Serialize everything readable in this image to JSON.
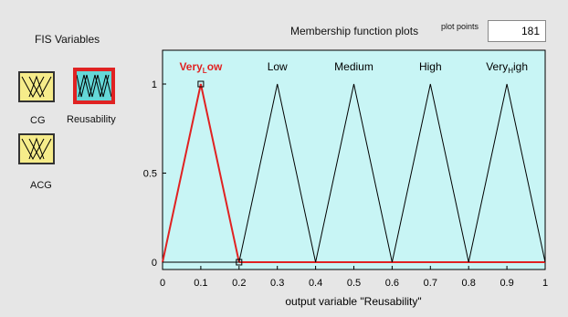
{
  "fis_variables": {
    "title": "FIS Variables",
    "items": [
      {
        "label": "CG",
        "selected": false,
        "color": "#f6ec8a"
      },
      {
        "label": "Reusability",
        "selected": true,
        "color": "#64d8d8"
      },
      {
        "label": "ACG",
        "selected": false,
        "color": "#f6ec8a"
      }
    ]
  },
  "plot": {
    "title": "Membership function plots",
    "plot_points_label": "plot points",
    "plot_points_value": "181",
    "xlabel": "output variable \"Reusability\"",
    "background": "#c8f5f5",
    "active_color": "#e02222"
  },
  "chart_data": {
    "type": "line",
    "title": "Membership function plots",
    "xlabel": "output variable \"Reusability\"",
    "ylabel": "",
    "xlim": [
      0,
      1
    ],
    "ylim": [
      0,
      1
    ],
    "x_ticks": [
      "0",
      "0.1",
      "0.2",
      "0.3",
      "0.4",
      "0.5",
      "0.6",
      "0.7",
      "0.8",
      "0.9",
      "1"
    ],
    "y_ticks": [
      "0",
      "0.5",
      "1"
    ],
    "series": [
      {
        "name": "Very_Low",
        "label_main": "Very",
        "label_sub": "L",
        "label_rest": "ow",
        "x": [
          0,
          0.1,
          0.2
        ],
        "y": [
          0,
          1,
          0
        ],
        "selected": true
      },
      {
        "name": "Low",
        "label_main": "Low",
        "label_sub": "",
        "label_rest": "",
        "x": [
          0.2,
          0.3,
          0.4
        ],
        "y": [
          0,
          1,
          0
        ],
        "selected": false
      },
      {
        "name": "Medium",
        "label_main": "Medium",
        "label_sub": "",
        "label_rest": "",
        "x": [
          0.4,
          0.5,
          0.6
        ],
        "y": [
          0,
          1,
          0
        ],
        "selected": false
      },
      {
        "name": "High",
        "label_main": "High",
        "label_sub": "",
        "label_rest": "",
        "x": [
          0.6,
          0.7,
          0.8
        ],
        "y": [
          0,
          1,
          0
        ],
        "selected": false
      },
      {
        "name": "Very_High",
        "label_main": "Very",
        "label_sub": "H",
        "label_rest": "igh",
        "x": [
          0.8,
          0.9,
          1
        ],
        "y": [
          0,
          1,
          0
        ],
        "selected": false
      }
    ]
  }
}
